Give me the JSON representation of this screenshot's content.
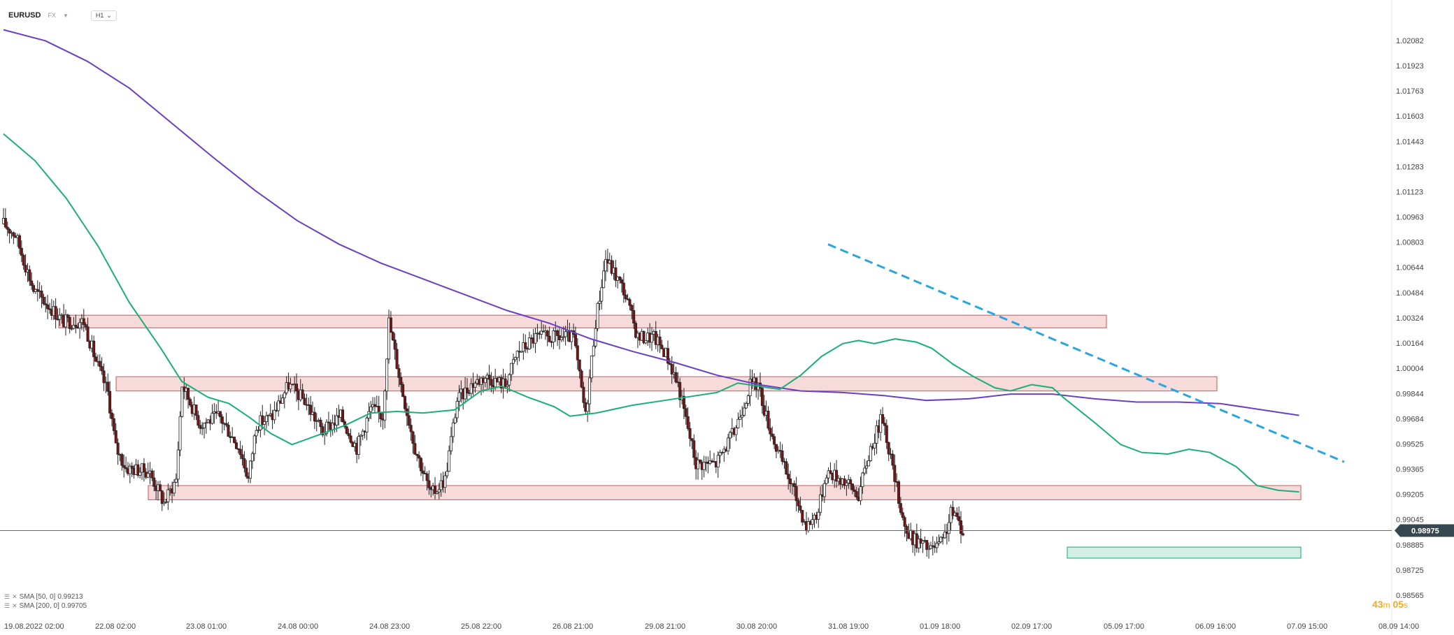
{
  "header": {
    "symbol": "EURUSD",
    "market": "FX",
    "timeframe": "H1"
  },
  "indicators": [
    {
      "label": "SMA [50, 0]",
      "value": "0.99213",
      "color": "#1aae7a"
    },
    {
      "label": "SMA [200, 0]",
      "value": "0.99705",
      "color": "#6a3fc4"
    }
  ],
  "timer": {
    "minutes": "43",
    "seconds": "05",
    "m_unit": "m",
    "s_unit": "s"
  },
  "chart_data": {
    "type": "candlestick",
    "y_ticks": [
      "1.02082",
      "1.01923",
      "1.01763",
      "1.01603",
      "1.01443",
      "1.01283",
      "1.01123",
      "1.00963",
      "1.00803",
      "1.00644",
      "1.00484",
      "1.00324",
      "1.00164",
      "1.00004",
      "0.99844",
      "0.99684",
      "0.99525",
      "0.99365",
      "0.99205",
      "0.99045",
      "0.98885",
      "0.98725",
      "0.98565"
    ],
    "ylim": [
      0.98565,
      1.02082
    ],
    "x_ticks": [
      "19.08.2022  02:00",
      "22.08  02:00",
      "23.08  01:00",
      "24.08  00:00",
      "24.08  23:00",
      "25.08  22:00",
      "26.08  21:00",
      "29.08  21:00",
      "30.08  20:00",
      "31.08  19:00",
      "01.09  18:00",
      "02.09  17:00",
      "05.09  17:00",
      "06.09  16:00",
      "07.09  15:00",
      "08.09  14:00"
    ],
    "last_price": "0.98975",
    "colors": {
      "up": "#ffffff",
      "down": "#7a1414",
      "wick": "#222222",
      "sma50": "#1aae7a",
      "sma200": "#6a3fc4",
      "trend": "#2aa5e0",
      "resistance": "#e06a6a",
      "support": "#2fb884",
      "price_line": "#546e7a"
    },
    "zones": [
      {
        "type": "resistance",
        "x_from": "20.08 02:00",
        "x_to": "02.09 17:00",
        "y_low": 1.0026,
        "y_high": 1.0034
      },
      {
        "type": "resistance",
        "x_from": "22.08 00:00",
        "x_to": "05.09 20:00",
        "y_low": 0.9986,
        "y_high": 0.9995
      },
      {
        "type": "resistance",
        "x_from": "22.08 16:00",
        "x_to": "06.09 23:00",
        "y_low": 0.9917,
        "y_high": 0.9926
      },
      {
        "type": "support",
        "x_from": "02.09 18:00",
        "x_to": "06.09 23:00",
        "y_low": 0.988,
        "y_high": 0.9887
      }
    ],
    "trendline": {
      "from": [
        "31.08 13:00",
        1.0079
      ],
      "to": [
        "07.09 18:00",
        0.9941
      ],
      "style": "dashed"
    },
    "sma50": [
      [
        0,
        1.0149
      ],
      [
        30,
        1.0132
      ],
      [
        60,
        1.0108
      ],
      [
        90,
        1.0078
      ],
      [
        120,
        1.0042
      ],
      [
        150,
        1.0013
      ],
      [
        170,
        0.9992
      ],
      [
        195,
        0.9982
      ],
      [
        215,
        0.9978
      ],
      [
        235,
        0.9969
      ],
      [
        255,
        0.9959
      ],
      [
        275,
        0.9952
      ],
      [
        300,
        0.9958
      ],
      [
        325,
        0.9964
      ],
      [
        350,
        0.9972
      ],
      [
        375,
        0.9973
      ],
      [
        400,
        0.9972
      ],
      [
        430,
        0.9974
      ],
      [
        455,
        0.9986
      ],
      [
        475,
        0.9989
      ],
      [
        500,
        0.9982
      ],
      [
        525,
        0.9976
      ],
      [
        540,
        0.997
      ],
      [
        565,
        0.9972
      ],
      [
        600,
        0.9977
      ],
      [
        640,
        0.9981
      ],
      [
        680,
        0.9985
      ],
      [
        700,
        0.9991
      ],
      [
        740,
        0.9987
      ],
      [
        760,
        0.9996
      ],
      [
        780,
        1.0008
      ],
      [
        800,
        1.0016
      ],
      [
        815,
        1.0018
      ],
      [
        830,
        1.0016
      ],
      [
        850,
        1.0019
      ],
      [
        870,
        1.0017
      ],
      [
        885,
        1.0013
      ],
      [
        905,
        1.0003
      ],
      [
        925,
        0.9995
      ],
      [
        945,
        0.9988
      ],
      [
        960,
        0.9986
      ],
      [
        980,
        0.999
      ],
      [
        1000,
        0.9988
      ],
      [
        1010,
        0.9982
      ],
      [
        1040,
        0.9966
      ],
      [
        1065,
        0.9952
      ],
      [
        1085,
        0.9947
      ],
      [
        1110,
        0.9946
      ],
      [
        1130,
        0.9949
      ],
      [
        1150,
        0.9947
      ],
      [
        1175,
        0.9938
      ],
      [
        1195,
        0.9926
      ],
      [
        1215,
        0.9923
      ],
      [
        1235,
        0.9922
      ]
    ],
    "sma200": [
      [
        0,
        1.0215
      ],
      [
        40,
        1.0208
      ],
      [
        80,
        1.0195
      ],
      [
        120,
        1.0178
      ],
      [
        160,
        1.0156
      ],
      [
        200,
        1.0134
      ],
      [
        240,
        1.0113
      ],
      [
        280,
        1.0094
      ],
      [
        320,
        1.0079
      ],
      [
        360,
        1.0067
      ],
      [
        400,
        1.0057
      ],
      [
        440,
        1.0047
      ],
      [
        480,
        1.0037
      ],
      [
        520,
        1.0029
      ],
      [
        560,
        1.0019
      ],
      [
        600,
        1.0011
      ],
      [
        640,
        1.0004
      ],
      [
        680,
        0.9996
      ],
      [
        720,
        0.999
      ],
      [
        760,
        0.9986
      ],
      [
        800,
        0.9985
      ],
      [
        840,
        0.9983
      ],
      [
        880,
        0.998
      ],
      [
        920,
        0.9981
      ],
      [
        960,
        0.9984
      ],
      [
        1000,
        0.9984
      ],
      [
        1040,
        0.9981
      ],
      [
        1080,
        0.9979
      ],
      [
        1120,
        0.9979
      ],
      [
        1160,
        0.9978
      ],
      [
        1200,
        0.9974
      ],
      [
        1235,
        0.99705
      ]
    ]
  }
}
